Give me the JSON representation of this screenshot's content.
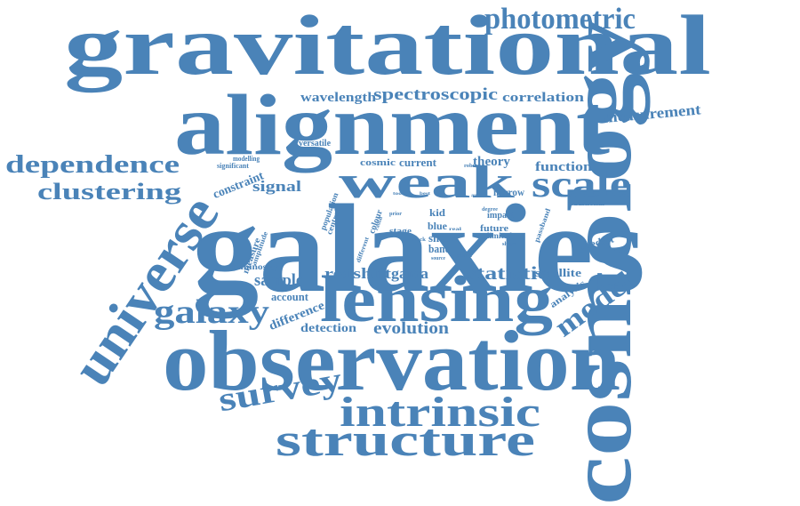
{
  "color": "#4a83b8",
  "words": [
    {
      "text": "gravitational"
    },
    {
      "text": "cosmology"
    },
    {
      "text": "galaxies"
    },
    {
      "text": "alignment"
    },
    {
      "text": "observation"
    },
    {
      "text": "lensing"
    },
    {
      "text": "universe"
    },
    {
      "text": "structure"
    },
    {
      "text": "intrinsic"
    },
    {
      "text": "weak"
    },
    {
      "text": "photometric"
    },
    {
      "text": "scale"
    },
    {
      "text": "galaxy"
    },
    {
      "text": "dependence"
    },
    {
      "text": "clustering"
    },
    {
      "text": "survey"
    },
    {
      "text": "model"
    },
    {
      "text": "spectroscopic"
    },
    {
      "text": "wavelength"
    },
    {
      "text": "correlation"
    },
    {
      "text": "measurement"
    },
    {
      "text": "statistic"
    },
    {
      "text": "evolution"
    },
    {
      "text": "redshift"
    },
    {
      "text": "gama"
    },
    {
      "text": "sample"
    },
    {
      "text": "signal"
    },
    {
      "text": "function"
    },
    {
      "text": "theory"
    },
    {
      "text": "current"
    },
    {
      "text": "cosmic"
    },
    {
      "text": "constraint"
    },
    {
      "text": "difference"
    },
    {
      "text": "detection"
    },
    {
      "text": "account"
    },
    {
      "text": "satellite"
    },
    {
      "text": "predict"
    },
    {
      "text": "analysis"
    },
    {
      "text": "narrow"
    },
    {
      "text": "shear"
    },
    {
      "text": "band"
    },
    {
      "text": "blue"
    },
    {
      "text": "kid"
    },
    {
      "text": "future"
    },
    {
      "text": "limited"
    },
    {
      "text": "impact"
    },
    {
      "text": "stage"
    },
    {
      "text": "colour"
    },
    {
      "text": "luminosity"
    },
    {
      "text": "versatile"
    },
    {
      "text": "modelling"
    },
    {
      "text": "significant"
    },
    {
      "text": "population"
    },
    {
      "text": "central"
    },
    {
      "text": "measure"
    },
    {
      "text": "amplitude"
    },
    {
      "text": "passband"
    },
    {
      "text": "additional"
    },
    {
      "text": "robust"
    },
    {
      "text": "different"
    },
    {
      "text": "radial"
    },
    {
      "text": "degree"
    },
    {
      "text": "prior"
    },
    {
      "text": "mock"
    },
    {
      "text": "source"
    },
    {
      "text": "power"
    },
    {
      "text": "shape"
    },
    {
      "text": "best"
    },
    {
      "text": "real"
    },
    {
      "text": "tool"
    },
    {
      "text": "auto"
    }
  ]
}
